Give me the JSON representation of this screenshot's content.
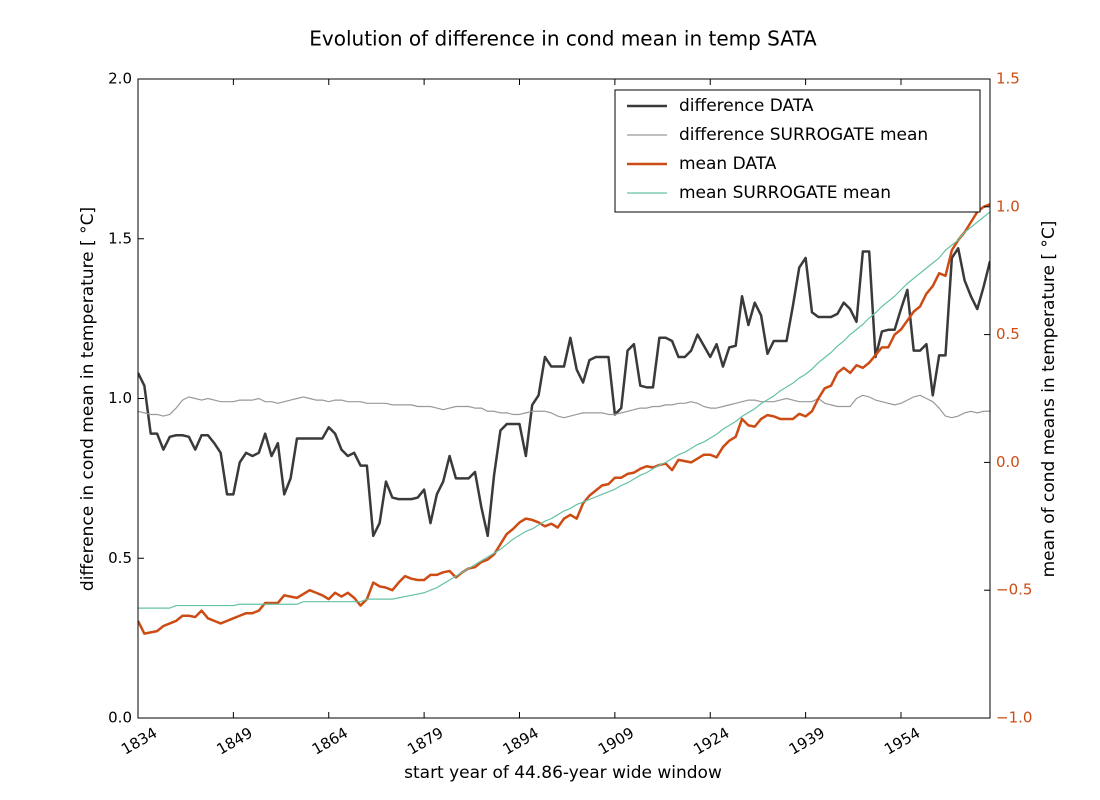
{
  "chart_data": {
    "type": "line",
    "title": "Evolution of difference in cond mean in temp SATA",
    "xlabel": "start year of 44.86-year wide window",
    "ylabel": "difference in cond mean in temperature [ °C]",
    "y2label": "mean of cond means in temperature [ °C]",
    "xlim": [
      1834,
      1968
    ],
    "xticks": [
      1834,
      1849,
      1864,
      1879,
      1894,
      1909,
      1924,
      1939,
      1954
    ],
    "ylim": [
      0,
      2
    ],
    "yticks": [
      {
        "value": 0,
        "label": "0.0"
      },
      0.5,
      {
        "value": 1,
        "label": "1.0"
      },
      1.5,
      {
        "value": 2,
        "label": "2.0"
      }
    ],
    "y2lim": [
      -1,
      1.5
    ],
    "y2ticks": [
      {
        "value": -1,
        "label": "−1.0"
      },
      {
        "value": -0.5,
        "label": "−0.5"
      },
      {
        "value": 0,
        "label": "0.0"
      },
      0.5,
      {
        "value": 1,
        "label": "1.0"
      },
      1.5
    ],
    "y2color": "#cc4c14",
    "legend": "upper right",
    "x": [
      1834,
      1835,
      1836,
      1837,
      1838,
      1839,
      1840,
      1841,
      1842,
      1843,
      1844,
      1845,
      1846,
      1847,
      1848,
      1849,
      1850,
      1851,
      1852,
      1853,
      1854,
      1855,
      1856,
      1857,
      1858,
      1859,
      1860,
      1861,
      1862,
      1863,
      1864,
      1865,
      1866,
      1867,
      1868,
      1869,
      1870,
      1871,
      1872,
      1873,
      1874,
      1875,
      1876,
      1877,
      1878,
      1879,
      1880,
      1881,
      1882,
      1883,
      1884,
      1885,
      1886,
      1887,
      1888,
      1889,
      1890,
      1891,
      1892,
      1893,
      1894,
      1895,
      1896,
      1897,
      1898,
      1899,
      1900,
      1901,
      1902,
      1903,
      1904,
      1905,
      1906,
      1907,
      1908,
      1909,
      1910,
      1911,
      1912,
      1913,
      1914,
      1915,
      1916,
      1917,
      1918,
      1919,
      1920,
      1921,
      1922,
      1923,
      1924,
      1925,
      1926,
      1927,
      1928,
      1929,
      1930,
      1931,
      1932,
      1933,
      1934,
      1935,
      1936,
      1937,
      1938,
      1939,
      1940,
      1941,
      1942,
      1943,
      1944,
      1945,
      1946,
      1947,
      1948,
      1949,
      1950,
      1951,
      1952,
      1953,
      1954,
      1955,
      1956,
      1957,
      1958,
      1959,
      1960,
      1961,
      1962,
      1963,
      1964,
      1965,
      1966,
      1967,
      1968
    ],
    "series": [
      {
        "name": "difference DATA",
        "color": "#3a3a3a",
        "width": 2.5,
        "values": [
          1.08,
          1.04,
          0.89,
          0.89,
          0.84,
          0.88,
          0.885,
          0.885,
          0.88,
          0.84,
          0.885,
          0.885,
          0.86,
          0.83,
          0.7,
          0.7,
          0.8,
          0.83,
          0.82,
          0.83,
          0.89,
          0.82,
          0.86,
          0.7,
          0.75,
          0.875,
          0.875,
          0.875,
          0.875,
          0.875,
          0.91,
          0.89,
          0.84,
          0.82,
          0.83,
          0.79,
          0.79,
          0.57,
          0.61,
          0.74,
          0.69,
          0.685,
          0.685,
          0.685,
          0.69,
          0.715,
          0.61,
          0.7,
          0.74,
          0.82,
          0.75,
          0.75,
          0.75,
          0.77,
          0.66,
          0.57,
          0.76,
          0.9,
          0.92,
          0.92,
          0.92,
          0.82,
          0.98,
          1.01,
          1.13,
          1.1,
          1.1,
          1.1,
          1.19,
          1.09,
          1.05,
          1.12,
          1.13,
          1.13,
          1.13,
          0.95,
          0.97,
          1.15,
          1.17,
          1.04,
          1.035,
          1.035,
          1.19,
          1.19,
          1.18,
          1.13,
          1.13,
          1.15,
          1.2,
          1.165,
          1.13,
          1.17,
          1.1,
          1.16,
          1.165,
          1.32,
          1.23,
          1.3,
          1.26,
          1.14,
          1.18,
          1.18,
          1.18,
          1.29,
          1.41,
          1.44,
          1.27,
          1.255,
          1.255,
          1.255,
          1.265,
          1.3,
          1.28,
          1.24,
          1.46,
          1.46,
          1.13,
          1.21,
          1.215,
          1.215,
          1.28,
          1.34,
          1.15,
          1.15,
          1.17,
          1.01,
          1.135,
          1.135,
          1.44,
          1.47,
          1.37,
          1.32,
          1.28,
          1.35,
          1.43
        ]
      },
      {
        "name": "difference SURROGATE mean",
        "color": "#999999",
        "width": 1.2,
        "values": [
          0.96,
          0.955,
          0.95,
          0.95,
          0.945,
          0.95,
          0.97,
          0.995,
          1.005,
          1.0,
          0.995,
          1.0,
          0.995,
          0.99,
          0.99,
          0.99,
          0.995,
          0.995,
          0.995,
          1.0,
          0.99,
          0.99,
          0.985,
          0.99,
          0.995,
          1.0,
          1.005,
          1.0,
          0.995,
          0.995,
          0.99,
          0.995,
          0.995,
          0.99,
          0.99,
          0.99,
          0.985,
          0.985,
          0.985,
          0.985,
          0.98,
          0.98,
          0.98,
          0.98,
          0.975,
          0.975,
          0.975,
          0.97,
          0.965,
          0.97,
          0.975,
          0.975,
          0.975,
          0.97,
          0.97,
          0.96,
          0.96,
          0.955,
          0.955,
          0.95,
          0.95,
          0.955,
          0.96,
          0.96,
          0.96,
          0.955,
          0.945,
          0.94,
          0.945,
          0.95,
          0.955,
          0.955,
          0.955,
          0.955,
          0.95,
          0.95,
          0.955,
          0.96,
          0.965,
          0.97,
          0.97,
          0.975,
          0.975,
          0.98,
          0.98,
          0.985,
          0.985,
          0.99,
          0.985,
          0.975,
          0.97,
          0.97,
          0.975,
          0.98,
          0.985,
          0.99,
          0.995,
          0.995,
          0.99,
          0.99,
          0.99,
          0.995,
          1.0,
          0.995,
          0.99,
          0.99,
          0.99,
          1.0,
          0.985,
          0.98,
          0.975,
          0.975,
          0.975,
          1.0,
          1.01,
          1.005,
          0.995,
          0.99,
          0.985,
          0.98,
          0.985,
          0.995,
          1.005,
          1.01,
          1.0,
          0.99,
          0.97,
          0.945,
          0.94,
          0.945,
          0.955,
          0.96,
          0.955,
          0.96,
          0.96
        ]
      },
      {
        "name": "mean DATA",
        "color": "#cc4c14",
        "width": 2.5,
        "axis": "y2",
        "values": [
          -0.62,
          -0.67,
          -0.665,
          -0.66,
          -0.64,
          -0.63,
          -0.62,
          -0.6,
          -0.6,
          -0.605,
          -0.58,
          -0.61,
          -0.62,
          -0.63,
          -0.62,
          -0.61,
          -0.6,
          -0.59,
          -0.59,
          -0.58,
          -0.55,
          -0.55,
          -0.55,
          -0.52,
          -0.525,
          -0.53,
          -0.515,
          -0.5,
          -0.51,
          -0.52,
          -0.535,
          -0.51,
          -0.525,
          -0.51,
          -0.53,
          -0.56,
          -0.535,
          -0.47,
          -0.485,
          -0.49,
          -0.5,
          -0.47,
          -0.445,
          -0.455,
          -0.46,
          -0.46,
          -0.44,
          -0.44,
          -0.43,
          -0.425,
          -0.45,
          -0.43,
          -0.415,
          -0.41,
          -0.39,
          -0.38,
          -0.36,
          -0.32,
          -0.28,
          -0.26,
          -0.235,
          -0.22,
          -0.225,
          -0.235,
          -0.25,
          -0.24,
          -0.255,
          -0.22,
          -0.205,
          -0.22,
          -0.16,
          -0.13,
          -0.11,
          -0.09,
          -0.085,
          -0.06,
          -0.06,
          -0.045,
          -0.04,
          -0.025,
          -0.015,
          -0.02,
          -0.01,
          -0.005,
          -0.03,
          0.01,
          0.005,
          0.0,
          0.015,
          0.03,
          0.03,
          0.02,
          0.06,
          0.085,
          0.1,
          0.17,
          0.145,
          0.14,
          0.17,
          0.185,
          0.18,
          0.17,
          0.17,
          0.17,
          0.19,
          0.18,
          0.2,
          0.25,
          0.29,
          0.3,
          0.35,
          0.37,
          0.35,
          0.38,
          0.37,
          0.39,
          0.42,
          0.45,
          0.45,
          0.5,
          0.52,
          0.555,
          0.59,
          0.61,
          0.66,
          0.69,
          0.74,
          0.73,
          0.83,
          0.87,
          0.9,
          0.94,
          0.98,
          1.0,
          1.01
        ]
      },
      {
        "name": "mean SURROGATE mean",
        "color": "#66c2a5",
        "width": 1.2,
        "axis": "y2",
        "values": [
          -0.57,
          -0.57,
          -0.57,
          -0.57,
          -0.57,
          -0.57,
          -0.56,
          -0.56,
          -0.56,
          -0.56,
          -0.56,
          -0.56,
          -0.56,
          -0.56,
          -0.56,
          -0.56,
          -0.555,
          -0.555,
          -0.555,
          -0.555,
          -0.555,
          -0.555,
          -0.555,
          -0.555,
          -0.555,
          -0.555,
          -0.545,
          -0.545,
          -0.545,
          -0.545,
          -0.545,
          -0.545,
          -0.545,
          -0.545,
          -0.545,
          -0.545,
          -0.535,
          -0.535,
          -0.535,
          -0.535,
          -0.535,
          -0.53,
          -0.525,
          -0.52,
          -0.515,
          -0.51,
          -0.5,
          -0.49,
          -0.475,
          -0.46,
          -0.445,
          -0.43,
          -0.415,
          -0.4,
          -0.385,
          -0.37,
          -0.355,
          -0.34,
          -0.32,
          -0.3,
          -0.285,
          -0.27,
          -0.26,
          -0.245,
          -0.23,
          -0.22,
          -0.205,
          -0.19,
          -0.18,
          -0.165,
          -0.155,
          -0.145,
          -0.135,
          -0.125,
          -0.115,
          -0.105,
          -0.09,
          -0.08,
          -0.065,
          -0.05,
          -0.04,
          -0.025,
          -0.01,
          0.0,
          0.015,
          0.03,
          0.04,
          0.055,
          0.07,
          0.08,
          0.095,
          0.11,
          0.13,
          0.145,
          0.16,
          0.18,
          0.195,
          0.21,
          0.23,
          0.245,
          0.26,
          0.28,
          0.295,
          0.31,
          0.33,
          0.345,
          0.365,
          0.39,
          0.41,
          0.43,
          0.455,
          0.475,
          0.5,
          0.52,
          0.54,
          0.565,
          0.585,
          0.61,
          0.63,
          0.65,
          0.675,
          0.7,
          0.72,
          0.74,
          0.76,
          0.78,
          0.8,
          0.83,
          0.85,
          0.87,
          0.9,
          0.92,
          0.94,
          0.96,
          0.98
        ]
      }
    ]
  }
}
